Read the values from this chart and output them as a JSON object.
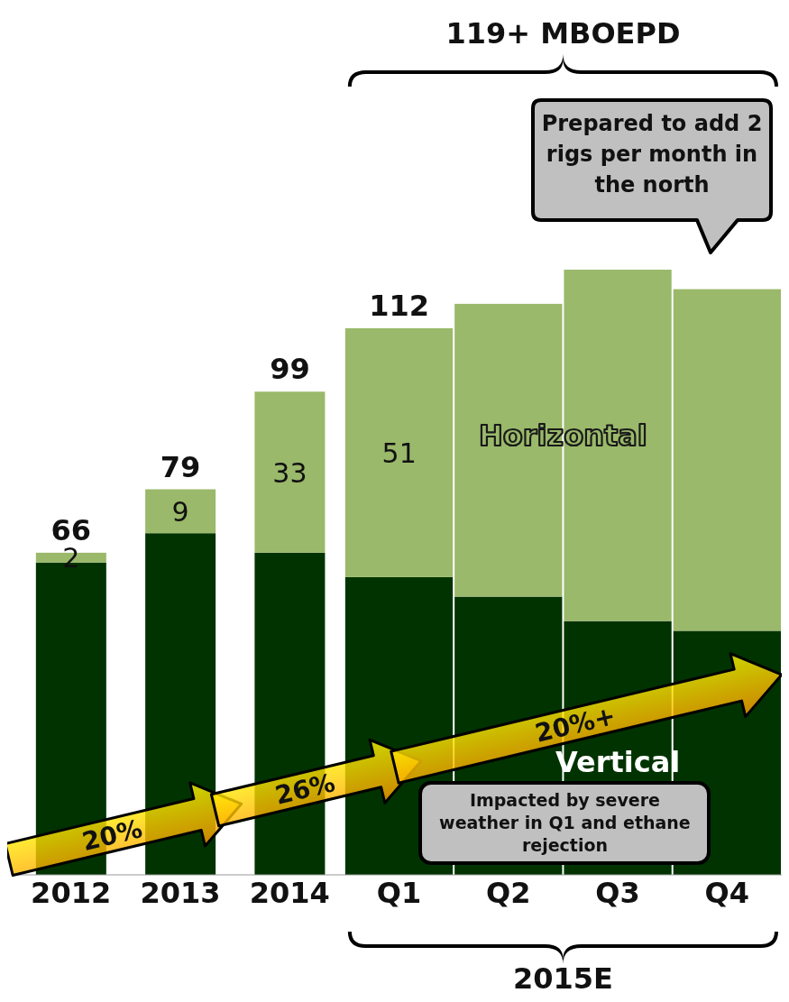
{
  "chart_data": {
    "type": "bar",
    "stacked": true,
    "categories": [
      "2012",
      "2013",
      "2014",
      "Q1",
      "Q2",
      "Q3",
      "Q4"
    ],
    "series": [
      {
        "name": "Vertical",
        "color": "#003300",
        "values": [
          64,
          70,
          66,
          61,
          57,
          52,
          50
        ]
      },
      {
        "name": "Horizontal",
        "color": "#9ab96a",
        "values": [
          2,
          9,
          33,
          51,
          60,
          72,
          70
        ],
        "value_labels": [
          "2",
          "9",
          "33",
          "51",
          null,
          null,
          null
        ]
      }
    ],
    "totals": [
      "66",
      "79",
      "99",
      "112",
      null,
      null,
      null
    ],
    "tick_labels": "x",
    "annotations": [
      "119+ MBOEPD",
      "Prepared to add 2 rigs per month in the north",
      "Impacted by severe weather in Q1 and ethane rejection",
      "20%",
      "26%",
      "20%+",
      "2015E"
    ]
  }
}
